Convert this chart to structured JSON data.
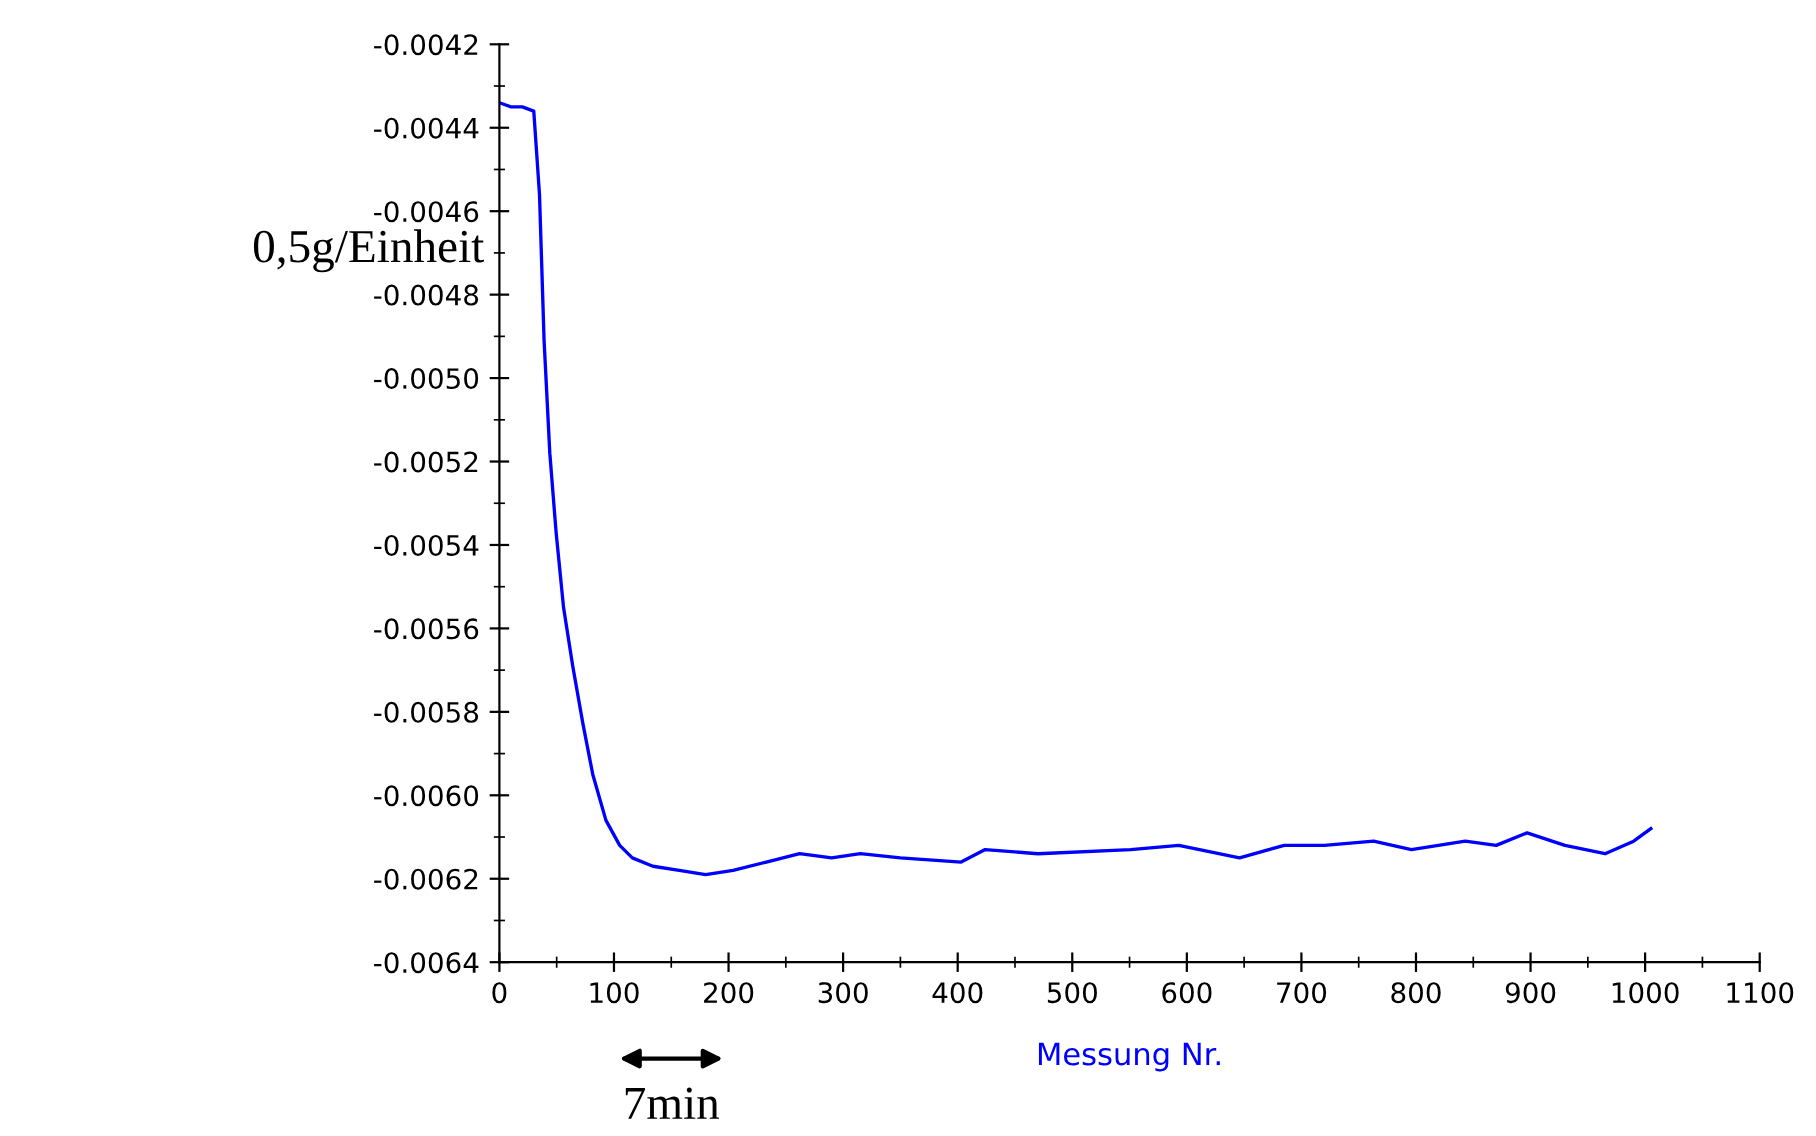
{
  "chart_data": {
    "type": "line",
    "xlabel": "Messung Nr.",
    "ylabel": "0,5g/Einheit",
    "annotations": [
      "7min"
    ],
    "x": [
      0,
      10,
      20,
      30,
      35,
      39,
      44,
      49.5,
      56,
      64,
      73,
      81.5,
      93,
      105,
      116,
      134,
      157,
      180,
      204,
      233,
      262,
      290,
      315,
      350,
      403,
      424,
      470,
      551,
      593,
      646,
      685,
      720,
      763,
      796,
      843,
      870,
      897,
      930,
      965,
      990,
      1005
    ],
    "series": [
      {
        "color": "#0000ff",
        "values": [
          -0.00434,
          -0.00435,
          -0.00435,
          -0.00436,
          -0.00456,
          -0.00491,
          -0.00518,
          -0.00537,
          -0.00555,
          -0.00569,
          -0.00583,
          -0.00595,
          -0.00606,
          -0.00612,
          -0.00615,
          -0.00617,
          -0.00618,
          -0.00619,
          -0.00618,
          -0.00616,
          -0.00614,
          -0.00615,
          -0.00614,
          -0.00615,
          -0.00616,
          -0.00613,
          -0.00614,
          -0.00613,
          -0.00612,
          -0.00615,
          -0.00612,
          -0.00612,
          -0.00611,
          -0.00613,
          -0.00611,
          -0.00612,
          -0.00609,
          -0.00612,
          -0.00614,
          -0.00611,
          -0.00608
        ]
      }
    ],
    "xlim": [
      0,
      1100
    ],
    "xticks": [
      0,
      100,
      200,
      300,
      400,
      500,
      600,
      700,
      800,
      900,
      1000,
      1100
    ],
    "ylim": [
      -0.0064,
      -0.0042
    ],
    "yticks": [
      {
        "value": -0.0064,
        "label": "-0.0064"
      },
      {
        "value": -0.0062,
        "label": "-0.0062"
      },
      {
        "value": -0.006,
        "label": "-0.0060"
      },
      {
        "value": -0.0058,
        "label": "-0.0058"
      },
      {
        "value": -0.0056,
        "label": "-0.0056"
      },
      {
        "value": -0.0054,
        "label": "-0.0054"
      },
      {
        "value": -0.0052,
        "label": "-0.0052"
      },
      {
        "value": -0.005,
        "label": "-0.0050"
      },
      {
        "value": -0.0048,
        "label": "-0.0048"
      },
      {
        "value": -0.0046,
        "label": "-0.0046"
      },
      {
        "value": -0.0044,
        "label": "-0.0044"
      },
      {
        "value": -0.0042,
        "label": "-0.0042"
      }
    ],
    "grid": false,
    "legend": false,
    "marker": "none",
    "line_style": "solid"
  }
}
